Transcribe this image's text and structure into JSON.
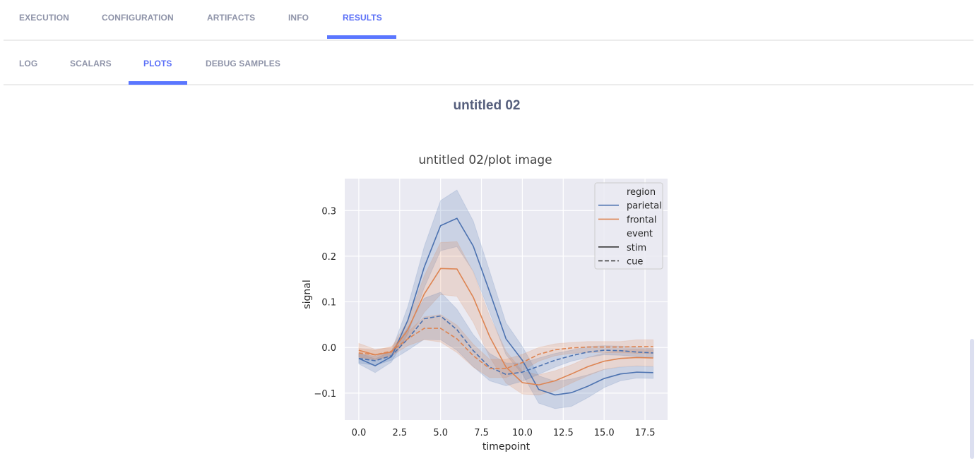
{
  "tabs": [
    {
      "label": "EXECUTION",
      "active": false
    },
    {
      "label": "CONFIGURATION",
      "active": false
    },
    {
      "label": "ARTIFACTS",
      "active": false
    },
    {
      "label": "INFO",
      "active": false
    },
    {
      "label": "RESULTS",
      "active": true
    }
  ],
  "subtabs": [
    {
      "label": "LOG",
      "active": false
    },
    {
      "label": "SCALARS",
      "active": false
    },
    {
      "label": "PLOTS",
      "active": true
    },
    {
      "label": "DEBUG SAMPLES",
      "active": false
    }
  ],
  "page_title": "untitled 02",
  "plot_title": "untitled 02/plot image",
  "colors": {
    "accent": "#5a76ff",
    "parietal": "#4c72b0",
    "frontal": "#dd8452",
    "plot_bg": "#eaeaf2"
  },
  "chart_data": {
    "type": "line",
    "xlabel": "timepoint",
    "ylabel": "signal",
    "xlim": [
      -0.86,
      18.88
    ],
    "ylim": [
      -0.159,
      0.37
    ],
    "xticks": [
      "0.0",
      "2.5",
      "5.0",
      "7.5",
      "10.0",
      "12.5",
      "15.0",
      "17.5"
    ],
    "yticks": [
      "-0.1",
      "0.0",
      "0.1",
      "0.2",
      "0.3"
    ],
    "grid": true,
    "legend": {
      "placement": "top-right",
      "entries": [
        {
          "label": "region",
          "kind": "header"
        },
        {
          "label": "parietal",
          "kind": "color",
          "color": "#4c72b0"
        },
        {
          "label": "frontal",
          "kind": "color",
          "color": "#dd8452"
        },
        {
          "label": "event",
          "kind": "header"
        },
        {
          "label": "stim",
          "kind": "solid"
        },
        {
          "label": "cue",
          "kind": "dashed"
        }
      ]
    },
    "x": [
      0,
      1,
      2,
      3,
      4,
      5,
      6,
      7,
      8,
      9,
      10,
      11,
      12,
      13,
      14,
      15,
      16,
      17,
      18
    ],
    "series": [
      {
        "region": "parietal",
        "event": "stim",
        "color": "#4c72b0",
        "dash": false,
        "values": [
          -0.024,
          -0.04,
          -0.02,
          0.06,
          0.176,
          0.267,
          0.283,
          0.222,
          0.122,
          0.019,
          -0.028,
          -0.092,
          -0.104,
          -0.099,
          -0.085,
          -0.068,
          -0.058,
          -0.054,
          -0.055
        ],
        "ci": [
          0.012,
          0.015,
          0.012,
          0.03,
          0.045,
          0.055,
          0.062,
          0.055,
          0.045,
          0.035,
          0.03,
          0.03,
          0.03,
          0.03,
          0.025,
          0.02,
          0.015,
          0.013,
          0.013
        ]
      },
      {
        "region": "frontal",
        "event": "stim",
        "color": "#dd8452",
        "dash": false,
        "values": [
          -0.006,
          -0.016,
          -0.01,
          0.039,
          0.117,
          0.173,
          0.172,
          0.11,
          0.024,
          -0.043,
          -0.077,
          -0.082,
          -0.073,
          -0.058,
          -0.042,
          -0.03,
          -0.024,
          -0.022,
          -0.023
        ],
        "ci": [
          0.015,
          0.012,
          0.01,
          0.02,
          0.04,
          0.057,
          0.06,
          0.055,
          0.045,
          0.035,
          0.025,
          0.022,
          0.022,
          0.02,
          0.02,
          0.018,
          0.018,
          0.018,
          0.018
        ]
      },
      {
        "region": "parietal",
        "event": "cue",
        "color": "#4c72b0",
        "dash": true,
        "values": [
          -0.024,
          -0.029,
          -0.018,
          0.019,
          0.063,
          0.069,
          0.039,
          -0.007,
          -0.043,
          -0.059,
          -0.054,
          -0.041,
          -0.028,
          -0.018,
          -0.01,
          -0.006,
          -0.007,
          -0.01,
          -0.012
        ],
        "ci": [
          0.01,
          0.01,
          0.01,
          0.025,
          0.045,
          0.052,
          0.045,
          0.035,
          0.03,
          0.025,
          0.02,
          0.018,
          0.015,
          0.012,
          0.012,
          0.01,
          0.01,
          0.01,
          0.01
        ]
      },
      {
        "region": "frontal",
        "event": "cue",
        "color": "#dd8452",
        "dash": true,
        "values": [
          -0.012,
          -0.016,
          -0.008,
          0.019,
          0.042,
          0.042,
          0.019,
          -0.018,
          -0.046,
          -0.046,
          -0.033,
          -0.015,
          -0.005,
          -0.001,
          0.001,
          0.001,
          0.001,
          0.002,
          0.002
        ],
        "ci": [
          0.01,
          0.01,
          0.01,
          0.015,
          0.025,
          0.03,
          0.03,
          0.025,
          0.02,
          0.02,
          0.018,
          0.015,
          0.013,
          0.012,
          0.012,
          0.012,
          0.012,
          0.015,
          0.015
        ]
      }
    ]
  }
}
